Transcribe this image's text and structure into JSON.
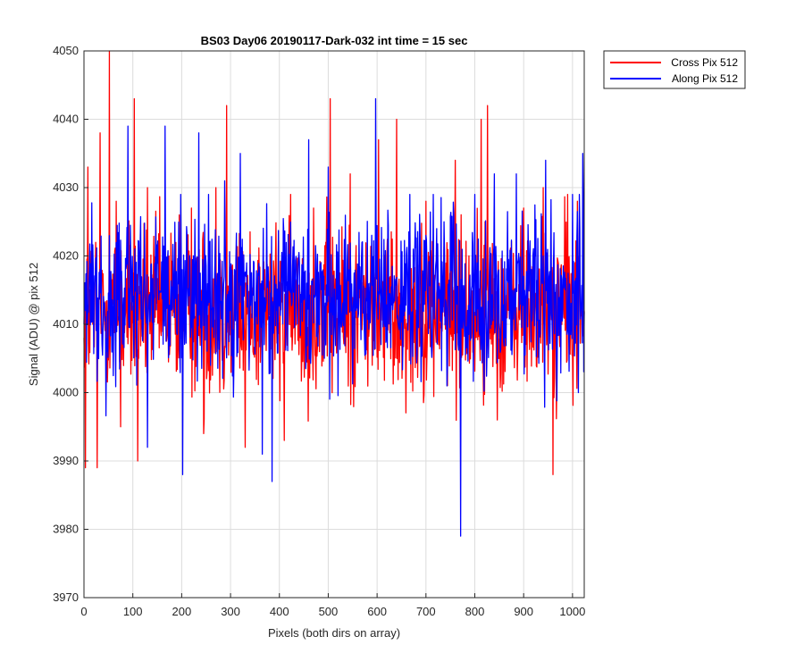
{
  "chart_data": {
    "type": "line",
    "title": "BS03 Day06 20190117-Dark-032 int time = 15 sec",
    "xlabel": "Pixels (both dirs on array)",
    "ylabel": "Signal (ADU) @ pix 512",
    "xlim": [
      0,
      1024
    ],
    "ylim": [
      3970,
      4050
    ],
    "xticks": [
      0,
      100,
      200,
      300,
      400,
      500,
      600,
      700,
      800,
      900,
      1000
    ],
    "yticks": [
      3970,
      3980,
      3990,
      4000,
      4010,
      4020,
      4030,
      4040,
      4050
    ],
    "xtick_labels": [
      "0",
      "100",
      "200",
      "300",
      "400",
      "500",
      "600",
      "700",
      "800",
      "900",
      "1000"
    ],
    "ytick_labels": [
      "3970",
      "3980",
      "3990",
      "4000",
      "4010",
      "4020",
      "4030",
      "4040",
      "4050"
    ],
    "grid": true,
    "legend_position": "outside-top-right",
    "series": [
      {
        "name": "Cross Pix 512",
        "color": "#ff0000",
        "keypoints": [
          [
            0,
            4008
          ],
          [
            3,
            3989
          ],
          [
            8,
            4033
          ],
          [
            18,
            4010
          ],
          [
            27,
            3989
          ],
          [
            33,
            4038
          ],
          [
            52,
            4050
          ],
          [
            66,
            4028
          ],
          [
            75,
            3995
          ],
          [
            103,
            4043
          ],
          [
            110,
            3990
          ],
          [
            130,
            4030
          ],
          [
            195,
            4026
          ],
          [
            220,
            4027
          ],
          [
            245,
            3994
          ],
          [
            270,
            4030
          ],
          [
            292,
            4042
          ],
          [
            330,
            3992
          ],
          [
            370,
            4018
          ],
          [
            410,
            3993
          ],
          [
            470,
            4027
          ],
          [
            504,
            4043
          ],
          [
            545,
            4032
          ],
          [
            578,
            4013
          ],
          [
            603,
            4037
          ],
          [
            640,
            4040
          ],
          [
            700,
            4028
          ],
          [
            760,
            4034
          ],
          [
            793,
            4008
          ],
          [
            813,
            4040
          ],
          [
            826,
            4042
          ],
          [
            846,
            3996
          ],
          [
            900,
            4027
          ],
          [
            940,
            4030
          ],
          [
            960,
            3988
          ],
          [
            990,
            4029
          ],
          [
            1010,
            4028
          ],
          [
            1024,
            4012
          ]
        ],
        "base": 4012,
        "noise": 6.2
      },
      {
        "name": "Along Pix 512",
        "color": "#0000ff",
        "keypoints": [
          [
            0,
            4010
          ],
          [
            10,
            4016
          ],
          [
            90,
            4039
          ],
          [
            130,
            3992
          ],
          [
            166,
            4039
          ],
          [
            202,
            3988
          ],
          [
            235,
            4038
          ],
          [
            255,
            4029
          ],
          [
            288,
            4031
          ],
          [
            320,
            4035
          ],
          [
            365,
            3991
          ],
          [
            385,
            3987
          ],
          [
            460,
            4037
          ],
          [
            500,
            4033
          ],
          [
            597,
            4043
          ],
          [
            625,
            4013
          ],
          [
            700,
            4023
          ],
          [
            771,
            3979
          ],
          [
            800,
            4029
          ],
          [
            840,
            4032
          ],
          [
            885,
            4032
          ],
          [
            935,
            4016
          ],
          [
            945,
            4034
          ],
          [
            1000,
            4029
          ],
          [
            1012,
            4000
          ],
          [
            1021,
            4035
          ]
        ],
        "base": 4014,
        "noise": 6.0
      }
    ]
  }
}
